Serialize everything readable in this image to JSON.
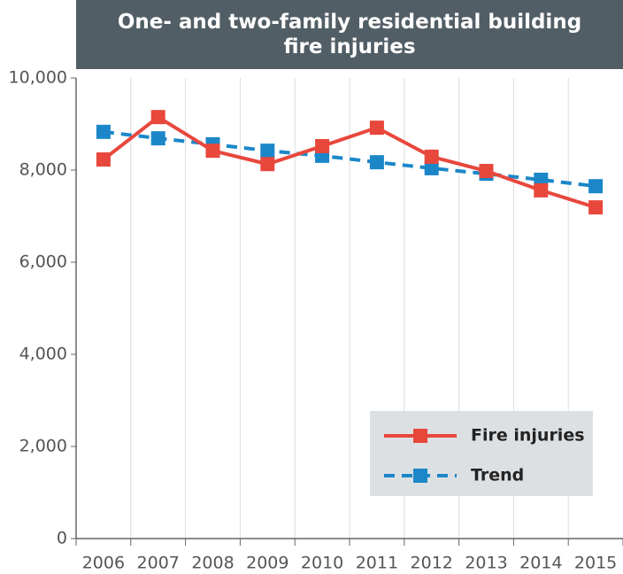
{
  "chart_data": {
    "type": "line",
    "title": "One- and two-family residential building fire injuries",
    "categories": [
      "2006",
      "2007",
      "2008",
      "2009",
      "2010",
      "2011",
      "2012",
      "2013",
      "2014",
      "2015"
    ],
    "series": [
      {
        "name": "Fire injuries",
        "color": "#e8473c",
        "dashed": false,
        "values": [
          8230,
          9150,
          8420,
          8130,
          8520,
          8920,
          8290,
          7980,
          7560,
          7190
        ]
      },
      {
        "name": "Trend",
        "color": "#1b87c9",
        "dashed": true,
        "values": [
          8830,
          8690,
          8560,
          8420,
          8310,
          8170,
          8040,
          7920,
          7790,
          7650
        ]
      }
    ],
    "ylim": [
      0,
      10000
    ],
    "yticks": [
      0,
      {
        "value": 2000,
        "label": "2,000"
      },
      {
        "value": 4000,
        "label": "4,000"
      },
      {
        "value": 6000,
        "label": "6,000"
      },
      {
        "value": 8000,
        "label": "8,000"
      },
      {
        "value": 10000,
        "label": "10,000"
      }
    ],
    "grid": true
  }
}
